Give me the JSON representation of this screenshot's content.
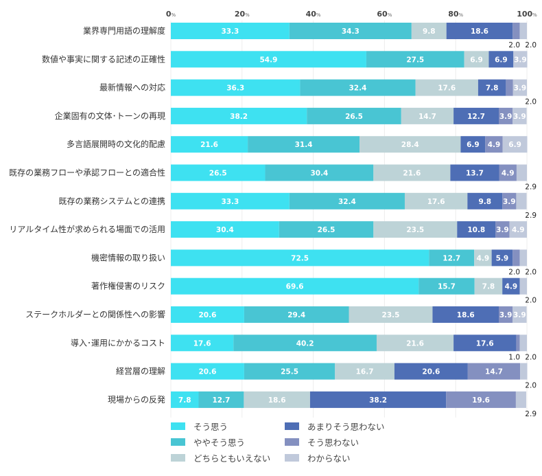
{
  "chart_data": {
    "type": "bar",
    "orientation": "horizontal",
    "stacked": true,
    "title": "",
    "xlabel": "",
    "ylabel": "",
    "xlim": [
      0,
      100
    ],
    "x_ticks": [
      {
        "value": 0,
        "num": "0",
        "unit": "%"
      },
      {
        "value": 20,
        "num": "20",
        "unit": "%"
      },
      {
        "value": 40,
        "num": "40",
        "unit": "%"
      },
      {
        "value": 60,
        "num": "60",
        "unit": "%"
      },
      {
        "value": 80,
        "num": "80",
        "unit": "%"
      },
      {
        "value": 100,
        "num": "100",
        "unit": "%"
      }
    ],
    "grid": true,
    "legend_position": "bottom",
    "categories": [
      "業界専門用語の理解度",
      "数値や事実に関する記述の正確性",
      "最新情報への対応",
      "企業固有の文体･トーンの再現",
      "多言語展開時の文化的配慮",
      "既存の業務フローや承認フローとの適合性",
      "既存の業務システムとの連携",
      "リアルタイム性が求められる場面での活用",
      "機密情報の取り扱い",
      "著作権侵害のリスク",
      "ステークホルダーとの関係性への影響",
      "導入･運用にかかるコスト",
      "経営層の理解",
      "現場からの反発"
    ],
    "series": [
      {
        "name": "そう思う",
        "color": "#3EE1F1",
        "values": [
          33.3,
          54.9,
          36.3,
          38.2,
          21.6,
          26.5,
          33.3,
          30.4,
          72.5,
          69.6,
          20.6,
          17.6,
          20.6,
          7.8
        ]
      },
      {
        "name": "ややそう思う",
        "color": "#49C5D3",
        "values": [
          34.3,
          27.5,
          32.4,
          26.5,
          31.4,
          30.4,
          32.4,
          26.5,
          12.7,
          15.7,
          29.4,
          40.2,
          25.5,
          12.7
        ]
      },
      {
        "name": "どちらともいえない",
        "color": "#BDD3D7",
        "values": [
          9.8,
          6.9,
          17.6,
          14.7,
          28.4,
          21.6,
          17.6,
          23.5,
          4.9,
          7.8,
          23.5,
          21.6,
          16.7,
          18.6
        ]
      },
      {
        "name": "あまりそう思わない",
        "color": "#4E6EB5",
        "values": [
          18.6,
          6.9,
          7.8,
          12.7,
          6.9,
          13.7,
          9.8,
          10.8,
          5.9,
          4.9,
          18.6,
          17.6,
          20.6,
          38.2
        ]
      },
      {
        "name": "そう思わない",
        "color": "#8490C0",
        "values": [
          2.0,
          0,
          2.0,
          3.9,
          4.9,
          4.9,
          3.9,
          3.9,
          2.0,
          0,
          3.9,
          1.0,
          14.7,
          19.6
        ]
      },
      {
        "name": "わからない",
        "color": "#C0C9DB",
        "values": [
          2.0,
          3.9,
          3.9,
          3.9,
          6.9,
          2.9,
          2.9,
          4.9,
          2.0,
          2.0,
          3.9,
          2.0,
          2.0,
          2.9
        ]
      }
    ],
    "data_labels": {
      "inside": [
        [
          "33.3",
          "34.3",
          "9.8",
          "18.6",
          null,
          null
        ],
        [
          "54.9",
          "27.5",
          "6.9",
          "6.9",
          null,
          "3.9"
        ],
        [
          "36.3",
          "32.4",
          "17.6",
          "7.8",
          null,
          "3.9"
        ],
        [
          "38.2",
          "26.5",
          "14.7",
          "12.7",
          "3.9",
          "3.9"
        ],
        [
          "21.6",
          "31.4",
          "28.4",
          "6.9",
          "4.9",
          "6.9"
        ],
        [
          "26.5",
          "30.4",
          "21.6",
          "13.7",
          "4.9",
          null
        ],
        [
          "33.3",
          "32.4",
          "17.6",
          "9.8",
          "3.9",
          null
        ],
        [
          "30.4",
          "26.5",
          "23.5",
          "10.8",
          "3.9",
          "4.9"
        ],
        [
          "72.5",
          "12.7",
          "4.9",
          "5.9",
          null,
          null
        ],
        [
          "69.6",
          "15.7",
          "7.8",
          "4.9",
          null,
          null
        ],
        [
          "20.6",
          "29.4",
          "23.5",
          "18.6",
          "3.9",
          "3.9"
        ],
        [
          "17.6",
          "40.2",
          "21.6",
          "17.6",
          null,
          null
        ],
        [
          "20.6",
          "25.5",
          "16.7",
          "20.6",
          "14.7",
          null
        ],
        [
          "7.8",
          "12.7",
          "18.6",
          "38.2",
          "19.6",
          null
        ]
      ],
      "outside": [
        [
          "2.0",
          "2.0"
        ],
        [],
        [
          "2.0"
        ],
        [],
        [],
        [
          "2.9"
        ],
        [
          "2.9"
        ],
        [],
        [
          "2.0",
          "2.0"
        ],
        [
          "2.0"
        ],
        [],
        [
          "1.0",
          "2.0"
        ],
        [
          "2.0"
        ],
        [
          "2.9"
        ]
      ]
    }
  },
  "legend": {
    "items": [
      {
        "label": "そう思う",
        "color": "#3EE1F1"
      },
      {
        "label": "ややそう思う",
        "color": "#49C5D3"
      },
      {
        "label": "どちらともいえない",
        "color": "#BDD3D7"
      },
      {
        "label": "あまりそう思わない",
        "color": "#4E6EB5"
      },
      {
        "label": "そう思わない",
        "color": "#8490C0"
      },
      {
        "label": "わからない",
        "color": "#C0C9DB"
      }
    ]
  }
}
